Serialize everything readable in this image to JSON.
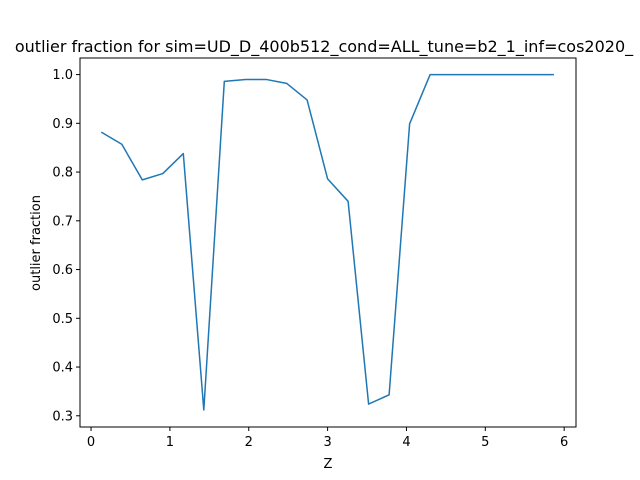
{
  "chart_data": {
    "type": "line",
    "title": "outlier fraction for sim=UD_D_400b512_cond=ALL_tune=b2_1_inf=cos2020_",
    "xlabel": "Z",
    "ylabel": "outlier fraction",
    "xlim": [
      -0.14,
      6.15
    ],
    "ylim": [
      0.277,
      1.034
    ],
    "xticks": [
      0,
      1,
      2,
      3,
      4,
      5,
      6
    ],
    "yticks": [
      0.3,
      0.4,
      0.5,
      0.6,
      0.7,
      0.8,
      0.9,
      1.0
    ],
    "xtick_labels": [
      "0",
      "1",
      "2",
      "3",
      "4",
      "5",
      "6"
    ],
    "ytick_labels": [
      "0.3",
      "0.4",
      "0.5",
      "0.6",
      "0.7",
      "0.8",
      "0.9",
      "1.0"
    ],
    "grid": false,
    "series": [
      {
        "color": "#1f77b4",
        "x": [
          0.13,
          0.39,
          0.65,
          0.91,
          1.17,
          1.43,
          1.69,
          1.96,
          2.22,
          2.48,
          2.74,
          3.0,
          3.26,
          3.52,
          3.78,
          4.04,
          4.3,
          4.56,
          4.83,
          5.09,
          5.35,
          5.61,
          5.87
        ],
        "y": [
          0.882,
          0.857,
          0.784,
          0.797,
          0.838,
          0.312,
          0.986,
          0.99,
          0.99,
          0.982,
          0.948,
          0.786,
          0.74,
          0.324,
          0.343,
          0.899,
          1.0,
          1.0,
          1.0,
          1.0,
          1.0,
          1.0,
          1.0
        ]
      }
    ]
  }
}
